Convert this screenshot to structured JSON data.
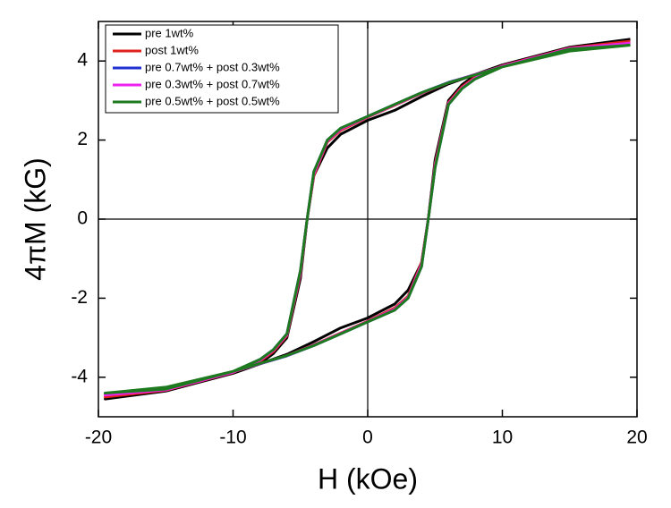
{
  "chart_data": {
    "type": "line",
    "x_label": "H (kOe)",
    "y_label": "4πM (kG)",
    "xlim": [
      -20,
      20
    ],
    "ylim": [
      -5,
      5
    ],
    "xticks": [
      -20,
      -10,
      0,
      10,
      20
    ],
    "yticks": [
      -4,
      -2,
      0,
      2,
      4
    ],
    "x": [
      19.5,
      15,
      10,
      6,
      4,
      2,
      0,
      -2,
      -3,
      -4,
      -4.5,
      -5,
      -6,
      -7,
      -8,
      -10,
      -15,
      -19.5,
      -15,
      -10,
      -6,
      -4,
      -2,
      0,
      2,
      3,
      4,
      4.5,
      5,
      6,
      7,
      8,
      10,
      15,
      19.5
    ],
    "series": [
      {
        "name": "pre 1wt%",
        "color": "#000000",
        "values": [
          4.55,
          4.3,
          3.9,
          3.42,
          3.1,
          2.75,
          2.5,
          2.15,
          1.8,
          1.1,
          0,
          -1.5,
          -3.0,
          -3.4,
          -3.65,
          -3.9,
          -4.35,
          -4.55,
          -4.3,
          -3.9,
          -3.42,
          -3.1,
          -2.75,
          -2.5,
          -2.15,
          -1.8,
          -1.1,
          0,
          1.5,
          3.0,
          3.4,
          3.65,
          3.9,
          4.35,
          4.55
        ]
      },
      {
        "name": "post 1wt%",
        "color": "#e0201c",
        "values": [
          4.5,
          4.28,
          3.87,
          3.45,
          3.18,
          2.88,
          2.58,
          2.25,
          1.95,
          1.1,
          0,
          -1.4,
          -2.95,
          -3.35,
          -3.6,
          -3.88,
          -4.33,
          -4.5,
          -4.28,
          -3.87,
          -3.45,
          -3.18,
          -2.88,
          -2.58,
          -2.25,
          -1.95,
          -1.1,
          0,
          1.4,
          2.95,
          3.35,
          3.6,
          3.88,
          4.33,
          4.5
        ]
      },
      {
        "name": "pre 0.7wt% + post 0.3wt%",
        "color": "#1f2fd0",
        "values": [
          4.42,
          4.26,
          3.86,
          3.46,
          3.2,
          2.9,
          2.6,
          2.3,
          2.0,
          1.2,
          0,
          -1.3,
          -2.9,
          -3.3,
          -3.55,
          -3.86,
          -4.31,
          -4.42,
          -4.26,
          -3.86,
          -3.46,
          -3.2,
          -2.9,
          -2.6,
          -2.3,
          -2.0,
          -1.2,
          0,
          1.3,
          2.9,
          3.3,
          3.55,
          3.86,
          4.31,
          4.42
        ]
      },
      {
        "name": "pre 0.3wt% + post 0.7wt%",
        "color": "#ee22ee",
        "values": [
          4.45,
          4.27,
          3.86,
          3.45,
          3.19,
          2.89,
          2.59,
          2.28,
          1.98,
          1.15,
          0,
          -1.35,
          -2.92,
          -3.32,
          -3.57,
          -3.87,
          -4.32,
          -4.45,
          -4.27,
          -3.86,
          -3.45,
          -3.19,
          -2.89,
          -2.59,
          -2.28,
          -1.98,
          -1.15,
          0,
          1.35,
          2.92,
          3.32,
          3.57,
          3.87,
          4.32,
          4.45
        ]
      },
      {
        "name": "pre 0.5wt% + post 0.5wt%",
        "color": "#1e7a1e",
        "values": [
          4.4,
          4.25,
          3.85,
          3.45,
          3.2,
          2.9,
          2.6,
          2.3,
          2.0,
          1.2,
          0,
          -1.3,
          -2.9,
          -3.3,
          -3.55,
          -3.85,
          -4.3,
          -4.4,
          -4.25,
          -3.85,
          -3.45,
          -3.2,
          -2.9,
          -2.6,
          -2.3,
          -2.0,
          -1.2,
          0,
          1.3,
          2.9,
          3.3,
          3.55,
          3.85,
          4.3,
          4.4
        ]
      }
    ]
  }
}
